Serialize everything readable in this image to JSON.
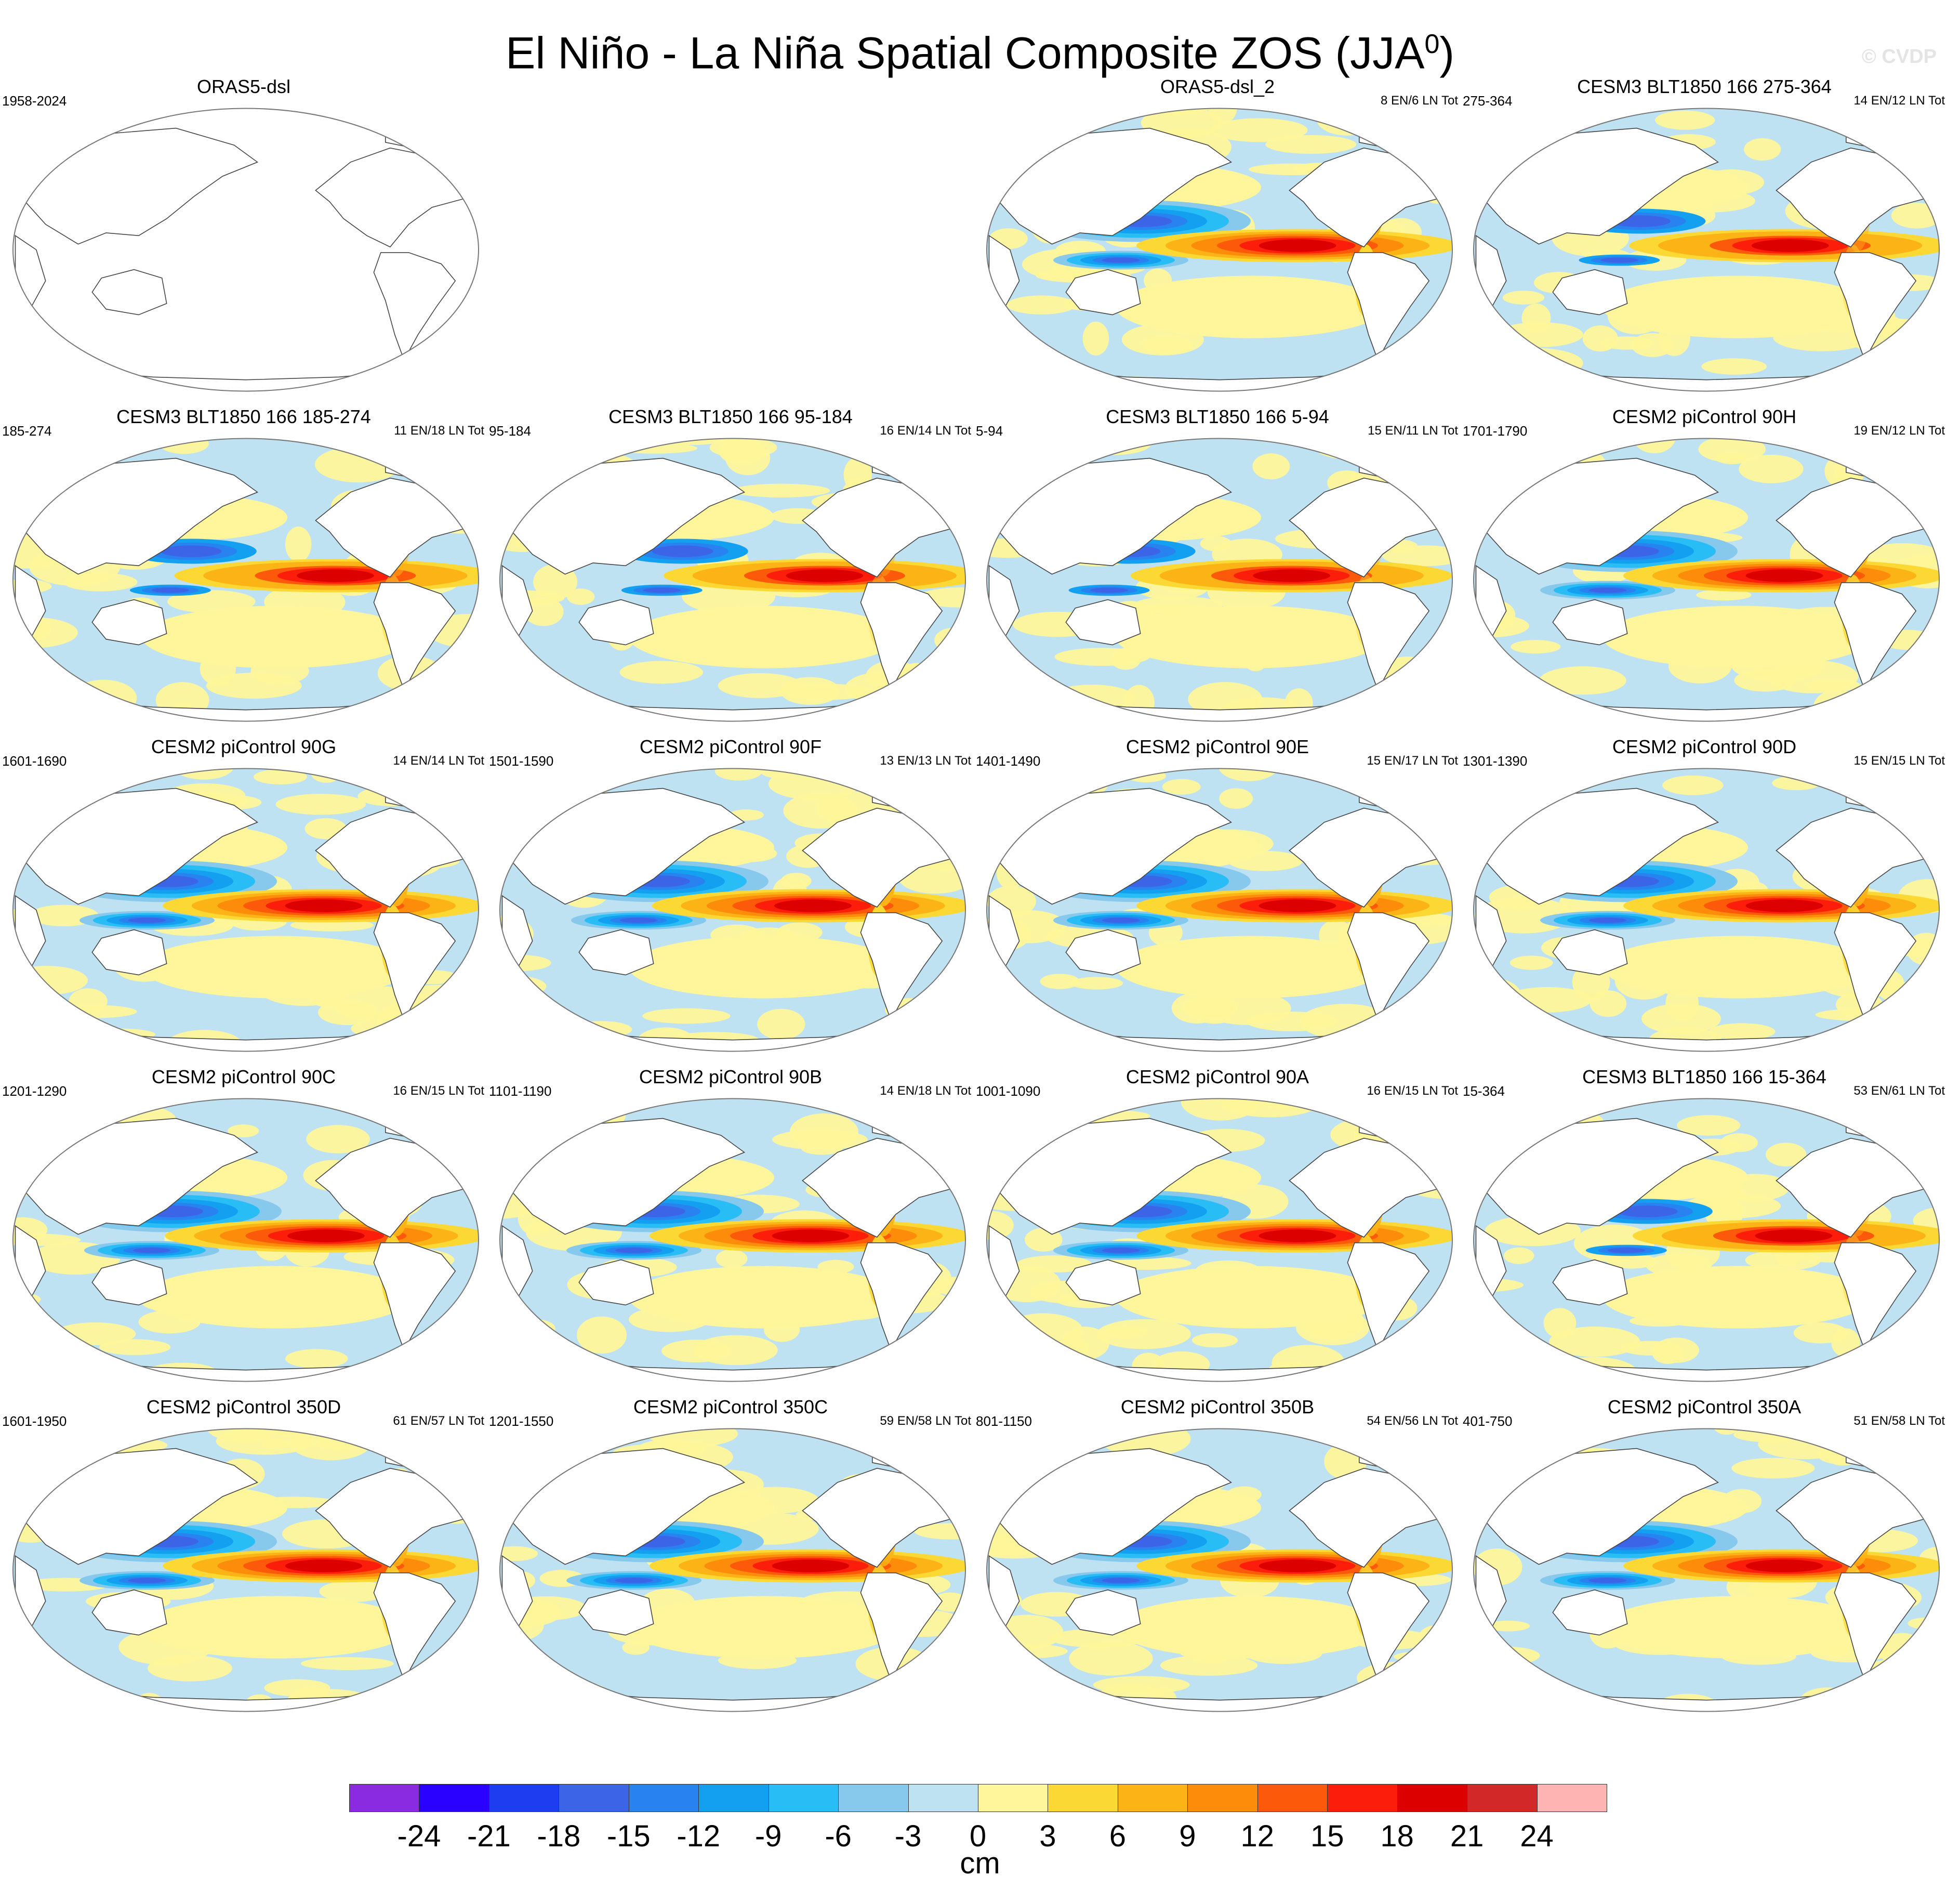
{
  "title": {
    "main": "El Niño - La Niña Spatial Composite ZOS (JJA",
    "superscript": "0",
    "closing": ")"
  },
  "watermark": "© CVDP",
  "colors": {
    "ocean_background": "#bfe2f2",
    "land": "#ffffff",
    "coast": "#444444"
  },
  "panels": [
    {
      "title": "ORAS5-dsl",
      "years": "1958-2024",
      "counts": "",
      "empty": true
    },
    null,
    {
      "title": "ORAS5-dsl_2",
      "years": "",
      "counts": "8 EN/6 LN Tot",
      "amp": 1.0,
      "shift": 0,
      "north": 0.2
    },
    {
      "title": "CESM3 BLT1850 166 275-364",
      "years": "275-364",
      "counts": "14 EN/12 LN Tot",
      "amp": 0.45,
      "shift": 0.05,
      "north": 0.4
    },
    {
      "title": "CESM3 BLT1850 166 185-274",
      "years": "185-274",
      "counts": "11 EN/18 LN Tot",
      "amp": 0.5,
      "shift": 0.1,
      "north": 0.3
    },
    {
      "title": "CESM3 BLT1850 166 95-184",
      "years": "95-184",
      "counts": "16 EN/14 LN Tot",
      "amp": 0.45,
      "shift": 0.12,
      "north": 0.3
    },
    {
      "title": "CESM3 BLT1850 166 5-94",
      "years": "5-94",
      "counts": "15 EN/11 LN Tot",
      "amp": 0.45,
      "shift": -0.05,
      "north": 0.2
    },
    {
      "title": "CESM2 piControl 90H",
      "years": "1701-1790",
      "counts": "19 EN/12 LN Tot",
      "amp": 0.85,
      "shift": 0,
      "north": 0.2
    },
    {
      "title": "CESM2 piControl 90G",
      "years": "1601-1690",
      "counts": "14 EN/14 LN Tot",
      "amp": 0.95,
      "shift": 0,
      "north": 0.3
    },
    {
      "title": "CESM2 piControl 90F",
      "years": "1501-1590",
      "counts": "13 EN/13 LN Tot",
      "amp": 1.0,
      "shift": 0.02,
      "north": 0.3
    },
    {
      "title": "CESM2 piControl 90E",
      "years": "1401-1490",
      "counts": "15 EN/17 LN Tot",
      "amp": 0.9,
      "shift": 0,
      "north": 0.3
    },
    {
      "title": "CESM2 piControl 90D",
      "years": "1301-1390",
      "counts": "15 EN/15 LN Tot",
      "amp": 0.9,
      "shift": 0,
      "north": 0.3
    },
    {
      "title": "CESM2 piControl 90C",
      "years": "1201-1290",
      "counts": "16 EN/15 LN Tot",
      "amp": 0.95,
      "shift": 0.02,
      "north": 0.3
    },
    {
      "title": "CESM2 piControl 90B",
      "years": "1101-1190",
      "counts": "14 EN/18 LN Tot",
      "amp": 0.95,
      "shift": 0,
      "north": 0.3
    },
    {
      "title": "CESM2 piControl 90A",
      "years": "1001-1090",
      "counts": "16 EN/15 LN Tot",
      "amp": 0.9,
      "shift": 0,
      "north": 0.3
    },
    {
      "title": "CESM3 BLT1850 166 15-364",
      "years": "15-364",
      "counts": "53 EN/61 LN Tot",
      "amp": 0.45,
      "shift": 0.08,
      "north": 0.3
    },
    {
      "title": "CESM2 piControl 350D",
      "years": "1601-1950",
      "counts": "61 EN/57 LN Tot",
      "amp": 0.85,
      "shift": 0,
      "north": 0.3
    },
    {
      "title": "CESM2 piControl 350C",
      "years": "1201-1550",
      "counts": "59 EN/58 LN Tot",
      "amp": 0.85,
      "shift": 0,
      "north": 0.3
    },
    {
      "title": "CESM2 piControl 350B",
      "years": "801-1150",
      "counts": "54 EN/56 LN Tot",
      "amp": 0.85,
      "shift": 0,
      "north": 0.3
    },
    {
      "title": "CESM2 piControl 350A",
      "years": "401-750",
      "counts": "51 EN/58 LN Tot",
      "amp": 0.8,
      "shift": 0,
      "north": 0.3
    }
  ],
  "colorbar": {
    "colors": [
      "#8a2be2",
      "#2a00ff",
      "#1e3cf0",
      "#3c64e6",
      "#2882f0",
      "#14a0f0",
      "#28bef5",
      "#87c8ed",
      "#bfe2f2",
      "#fff59a",
      "#fcd835",
      "#fcb316",
      "#fc8c0a",
      "#fc5a0a",
      "#fc1e0a",
      "#dc0000",
      "#d22828",
      "#ffb4b4"
    ],
    "labels": [
      "-24",
      "-21",
      "-18",
      "-15",
      "-12",
      "-9",
      "-6",
      "-3",
      "0",
      "3",
      "6",
      "9",
      "12",
      "15",
      "18",
      "21",
      "24"
    ],
    "units": "cm"
  }
}
